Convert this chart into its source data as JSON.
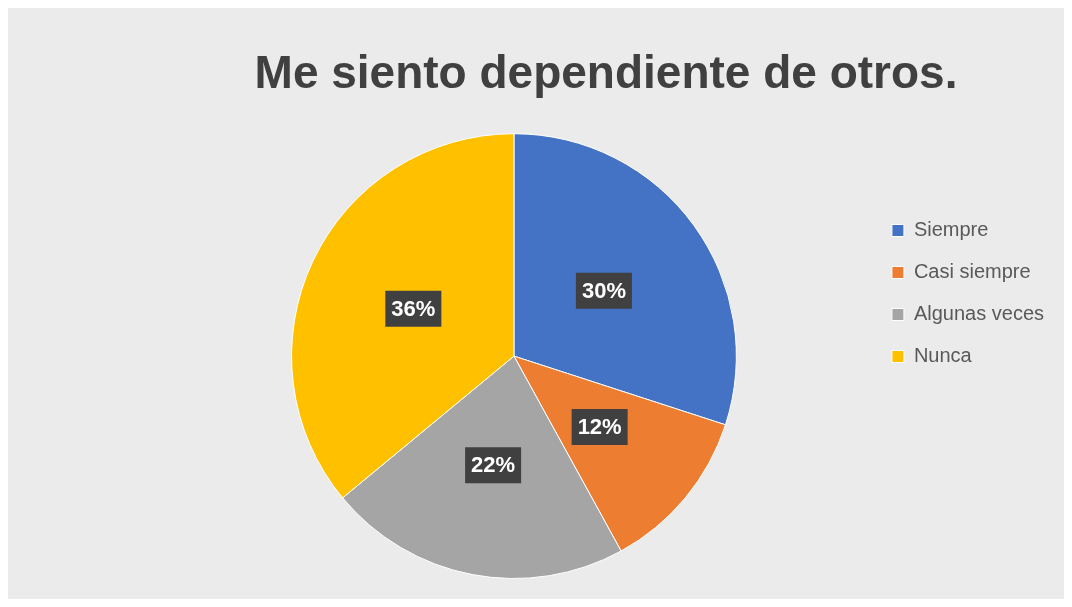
{
  "chart_data": {
    "type": "pie",
    "title": "Me siento dependiente de otros.",
    "categories": [
      "Siempre",
      "Casi siempre",
      "Algunas veces",
      "Nunca"
    ],
    "values": [
      30,
      12,
      22,
      36
    ],
    "value_labels": [
      "30%",
      "12%",
      "22%",
      "36%"
    ],
    "colors": [
      "#4472c4",
      "#ed7d31",
      "#a5a5a5",
      "#ffc000"
    ],
    "legend": "right"
  }
}
